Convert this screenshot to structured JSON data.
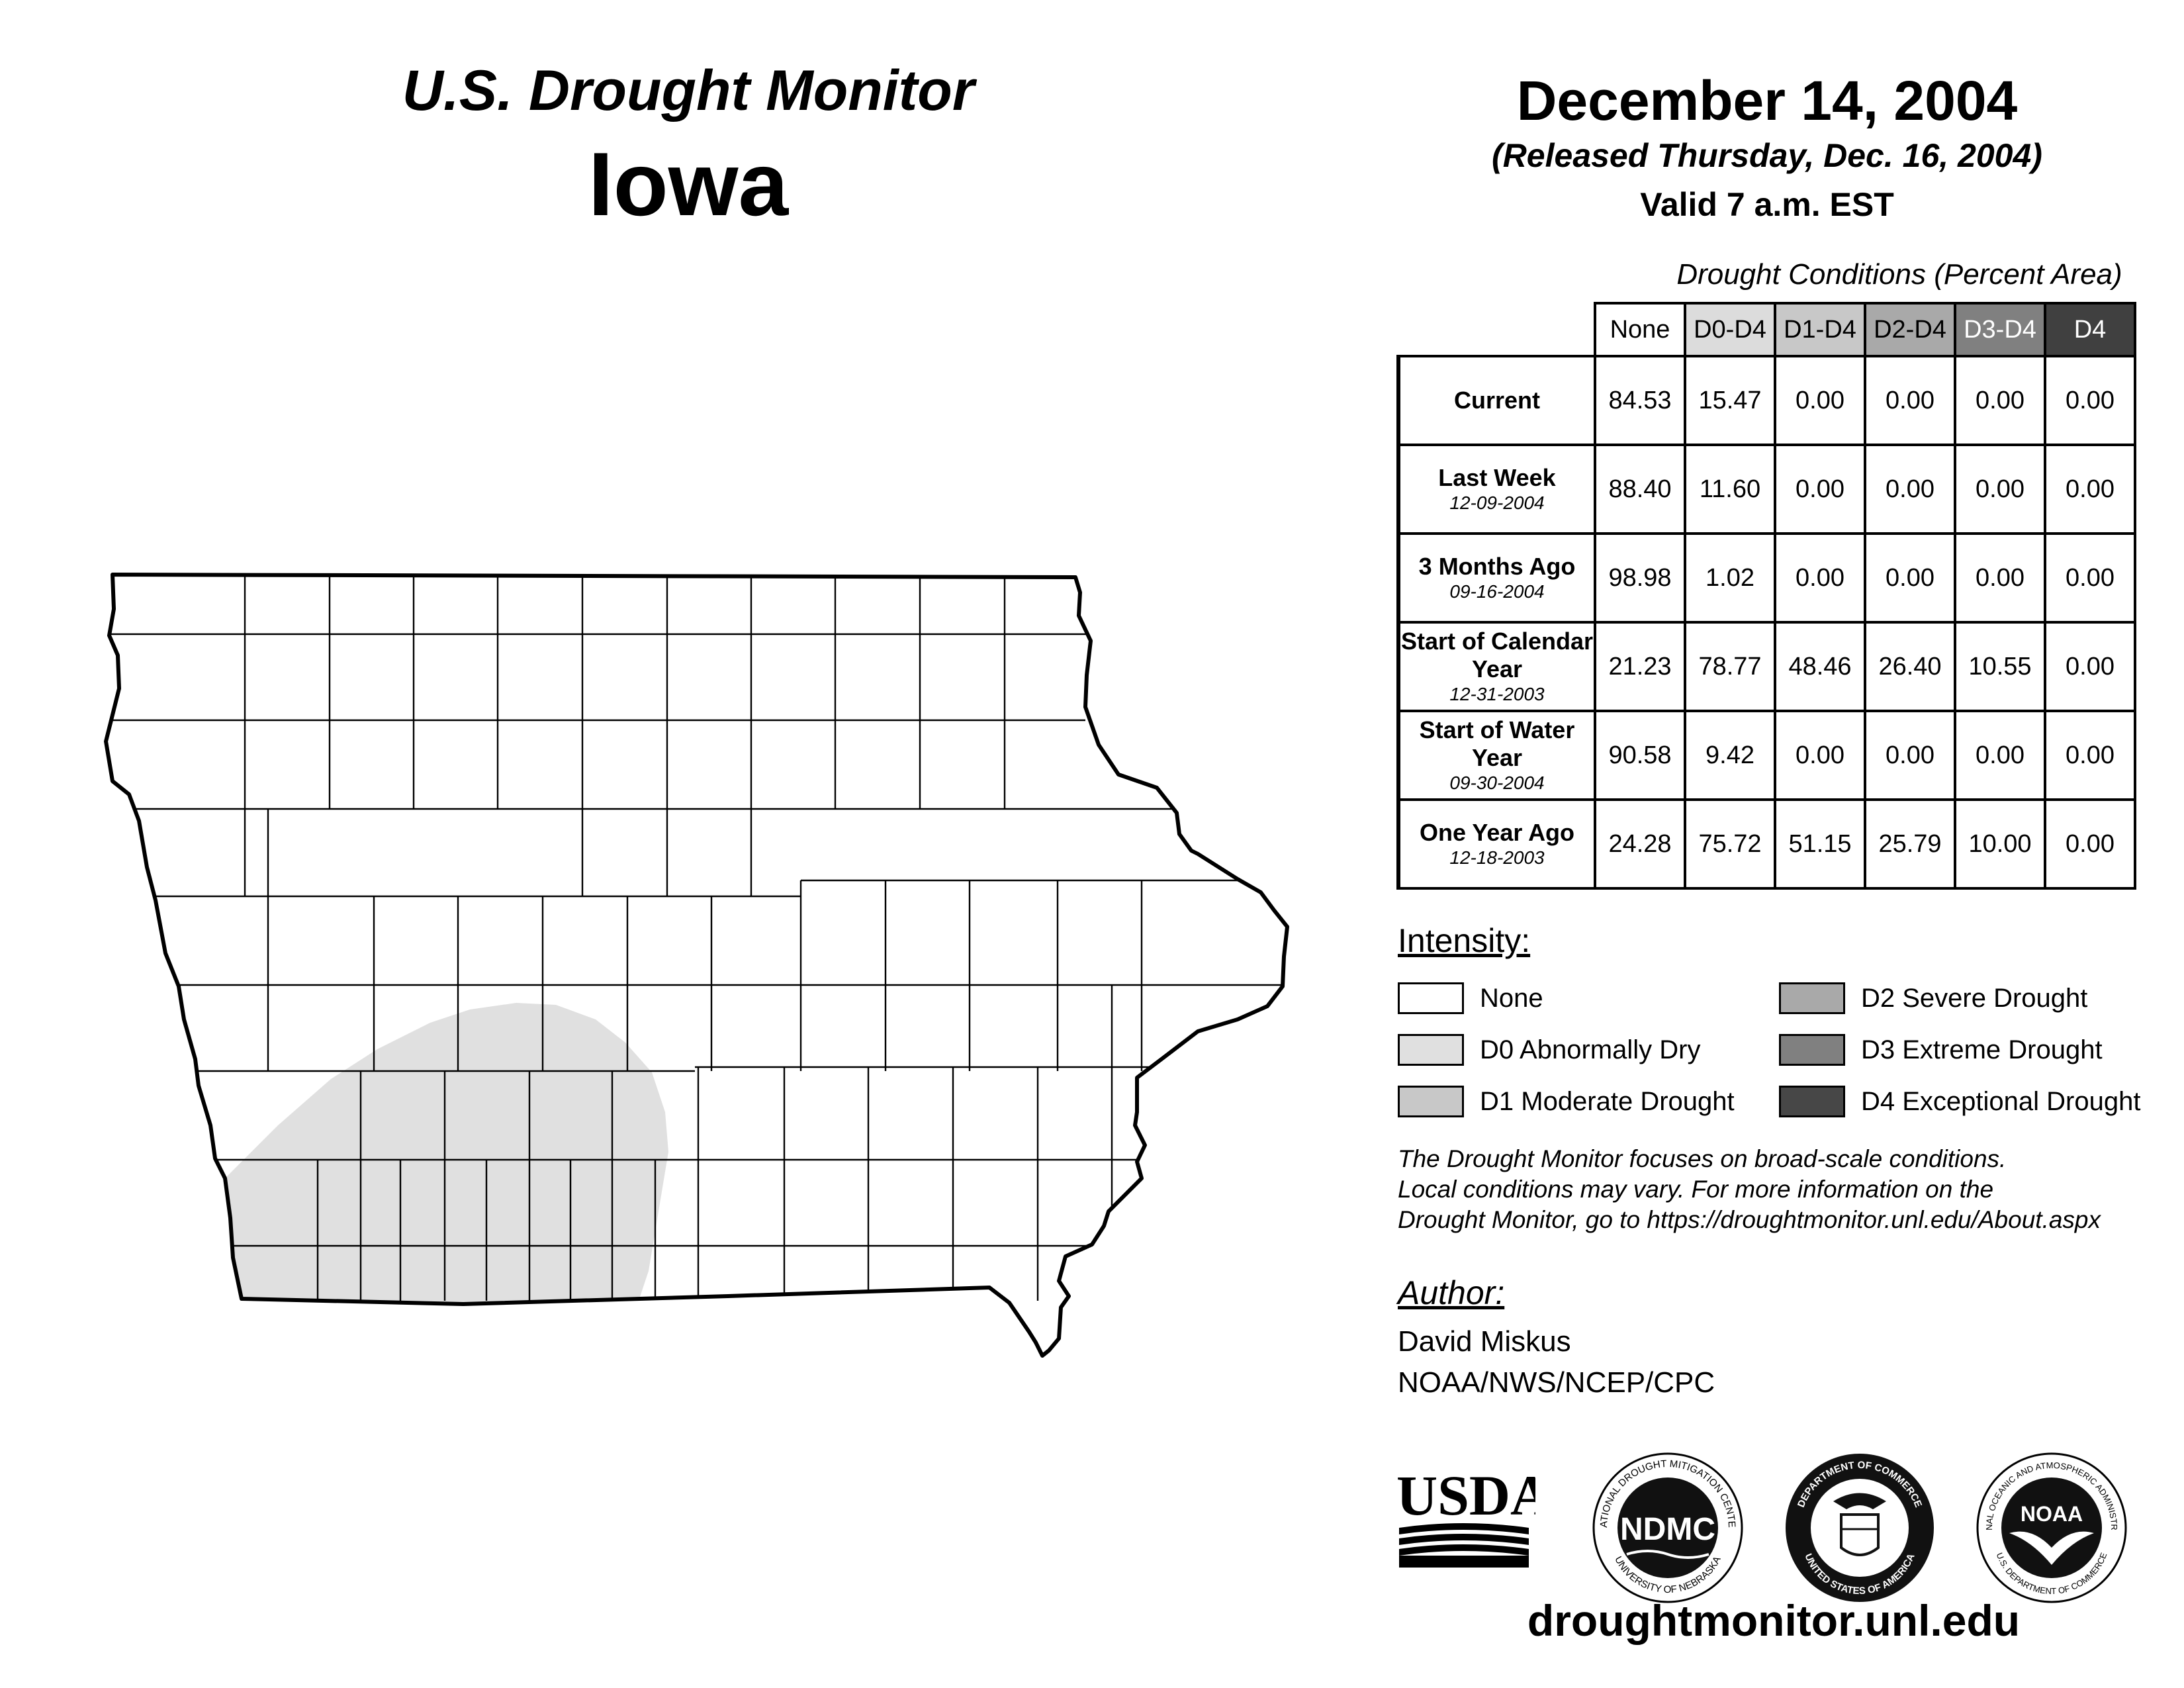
{
  "header": {
    "title": "U.S. Drought Monitor",
    "state": "Iowa",
    "date": "December 14, 2004",
    "released": "(Released Thursday, Dec. 16, 2004)",
    "valid": "Valid 7 a.m. EST"
  },
  "table": {
    "caption": "Drought Conditions (Percent Area)",
    "columns": [
      {
        "label": "None",
        "bg": "#ffffff",
        "fg": "#000000"
      },
      {
        "label": "D0-D4",
        "bg": "#dcdcdc",
        "fg": "#000000"
      },
      {
        "label": "D1-D4",
        "bg": "#c8c8c8",
        "fg": "#000000"
      },
      {
        "label": "D2-D4",
        "bg": "#a9a9a9",
        "fg": "#000000"
      },
      {
        "label": "D3-D4",
        "bg": "#808080",
        "fg": "#ffffff"
      },
      {
        "label": "D4",
        "bg": "#404040",
        "fg": "#ffffff"
      }
    ],
    "rows": [
      {
        "label": "Current",
        "date": "",
        "values": [
          "84.53",
          "15.47",
          "0.00",
          "0.00",
          "0.00",
          "0.00"
        ]
      },
      {
        "label": "Last Week",
        "date": "12-09-2004",
        "values": [
          "88.40",
          "11.60",
          "0.00",
          "0.00",
          "0.00",
          "0.00"
        ]
      },
      {
        "label": "3 Months Ago",
        "date": "09-16-2004",
        "values": [
          "98.98",
          "1.02",
          "0.00",
          "0.00",
          "0.00",
          "0.00"
        ]
      },
      {
        "label": "Start of Calendar Year",
        "date": "12-31-2003",
        "values": [
          "21.23",
          "78.77",
          "48.46",
          "26.40",
          "10.55",
          "0.00"
        ]
      },
      {
        "label": "Start of Water Year",
        "date": "09-30-2004",
        "values": [
          "90.58",
          "9.42",
          "0.00",
          "0.00",
          "0.00",
          "0.00"
        ]
      },
      {
        "label": "One Year Ago",
        "date": "12-18-2003",
        "values": [
          "24.28",
          "75.72",
          "51.15",
          "25.79",
          "10.00",
          "0.00"
        ]
      }
    ]
  },
  "legend": {
    "title": "Intensity:",
    "items": [
      {
        "label": "None",
        "color": "#ffffff"
      },
      {
        "label": "D0 Abnormally Dry",
        "color": "#e0e0e0"
      },
      {
        "label": "D1 Moderate Drought",
        "color": "#c8c8c8"
      },
      {
        "label": "D2 Severe Drought",
        "color": "#a9a9a9"
      },
      {
        "label": "D3 Extreme Drought",
        "color": "#808080"
      },
      {
        "label": "D4 Exceptional Drought",
        "color": "#474747"
      }
    ]
  },
  "note": {
    "lines": [
      "The Drought Monitor focuses on broad-scale conditions.",
      "Local conditions may vary. For more information on the",
      "Drought Monitor, go to https://droughtmonitor.unl.edu/About.aspx"
    ]
  },
  "author": {
    "heading": "Author:",
    "name": "David Miskus",
    "org": "NOAA/NWS/NCEP/CPC"
  },
  "logos": {
    "usda": "USDA",
    "ndmc": "NDMC",
    "ndmc_ring_top": "NATIONAL DROUGHT MITIGATION CENTER",
    "ndmc_ring_bottom": "UNIVERSITY OF NEBRASKA",
    "doc_ring_top": "DEPARTMENT OF COMMERCE",
    "doc_ring_bottom": "UNITED STATES OF AMERICA",
    "noaa": "NOAA",
    "noaa_ring_top": "NATIONAL OCEANIC AND ATMOSPHERIC ADMINISTRATION",
    "noaa_ring_bottom": "U.S. DEPARTMENT OF COMMERCE"
  },
  "map": {
    "region": "Iowa",
    "d0_color": "#e0e0e0",
    "d0_area": "southwest Iowa"
  },
  "footer": {
    "site": "droughtmonitor.unl.edu"
  }
}
